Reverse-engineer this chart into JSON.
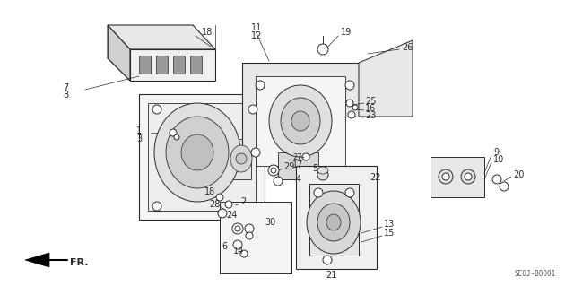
{
  "bg_color": "#ffffff",
  "line_color": "#2a2a2a",
  "diagram_code": "SE0J-B0001",
  "label_fontsize": 7.0,
  "figsize": [
    6.4,
    3.19
  ],
  "dpi": 100
}
